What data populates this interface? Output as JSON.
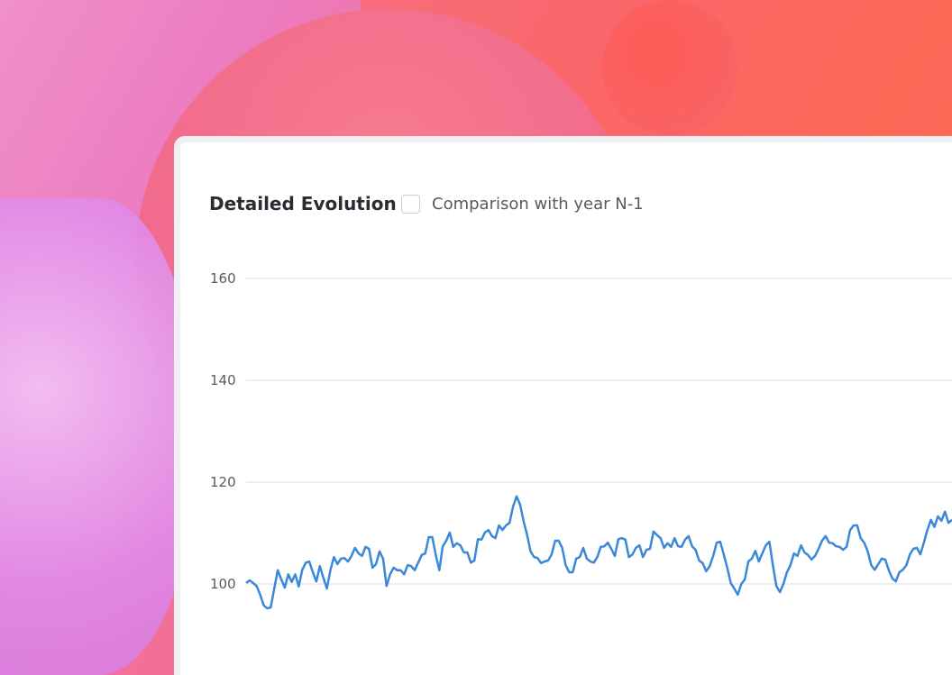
{
  "header": {
    "title": "Detailed Evolution",
    "comparison_label": "Comparison with year N-1",
    "comparison_checked": false
  },
  "chart_data": {
    "type": "line",
    "title": "Detailed Evolution",
    "xlabel": "",
    "ylabel": "",
    "y_ticks": [
      "100",
      "120",
      "140",
      "160"
    ],
    "grid": true,
    "line_color": "#3b87d8",
    "series": [
      {
        "values": [
          100.2,
          100.7,
          100.2,
          99.6,
          97.9,
          95.8,
          95.2,
          95.4,
          99.1,
          102.7,
          100.9,
          99.3,
          101.9,
          100.4,
          101.9,
          99.5,
          102.8,
          104.2,
          104.4,
          102.3,
          100.5,
          103.5,
          101.2,
          99.1,
          102.7,
          105.3,
          103.9,
          105.0,
          105.1,
          104.4,
          105.5,
          107.1,
          106.0,
          105.5,
          107.3,
          106.9,
          103.2,
          103.9,
          106.4,
          105.0,
          99.6,
          101.9,
          103.2,
          102.7,
          102.7,
          101.9,
          103.7,
          103.5,
          102.7,
          104.2,
          105.7,
          106.0,
          109.2,
          109.2,
          105.7,
          102.7,
          107.4,
          108.5,
          110.1,
          107.3,
          108.0,
          107.6,
          106.2,
          106.2,
          104.2,
          104.6,
          108.8,
          108.7,
          110.1,
          110.6,
          109.4,
          109.0,
          111.5,
          110.6,
          111.5,
          112.0,
          115.2,
          117.2,
          115.6,
          112.4,
          109.7,
          106.4,
          105.3,
          105.1,
          104.1,
          104.4,
          104.6,
          105.8,
          108.5,
          108.5,
          107.1,
          103.7,
          102.3,
          102.3,
          105.0,
          105.3,
          107.1,
          105.0,
          104.4,
          104.2,
          105.3,
          107.3,
          107.4,
          108.1,
          106.9,
          105.5,
          108.8,
          109.0,
          108.7,
          105.3,
          105.8,
          107.1,
          107.6,
          105.3,
          106.7,
          106.9,
          110.3,
          109.6,
          109.0,
          107.1,
          108.0,
          107.3,
          109.0,
          107.4,
          107.3,
          108.7,
          109.4,
          107.4,
          106.7,
          104.6,
          104.1,
          102.5,
          103.5,
          105.5,
          108.1,
          108.3,
          105.8,
          103.2,
          100.2,
          99.1,
          97.9,
          100.0,
          100.9,
          104.4,
          105.0,
          106.5,
          104.4,
          106.0,
          107.6,
          108.3,
          103.7,
          99.6,
          98.4,
          100.0,
          102.3,
          103.7,
          106.0,
          105.5,
          107.6,
          106.2,
          105.7,
          104.8,
          105.5,
          106.9,
          108.5,
          109.4,
          108.1,
          108.0,
          107.4,
          107.3,
          106.7,
          107.3,
          110.6,
          111.5,
          111.5,
          109.0,
          108.1,
          106.4,
          103.7,
          102.8,
          103.9,
          105.0,
          104.8,
          102.7,
          101.1,
          100.5,
          102.3,
          102.8,
          103.7,
          105.8,
          106.9,
          107.1,
          105.8,
          108.1,
          110.6,
          112.6,
          111.2,
          113.3,
          112.4,
          114.2,
          112.0,
          112.6
        ]
      }
    ]
  }
}
